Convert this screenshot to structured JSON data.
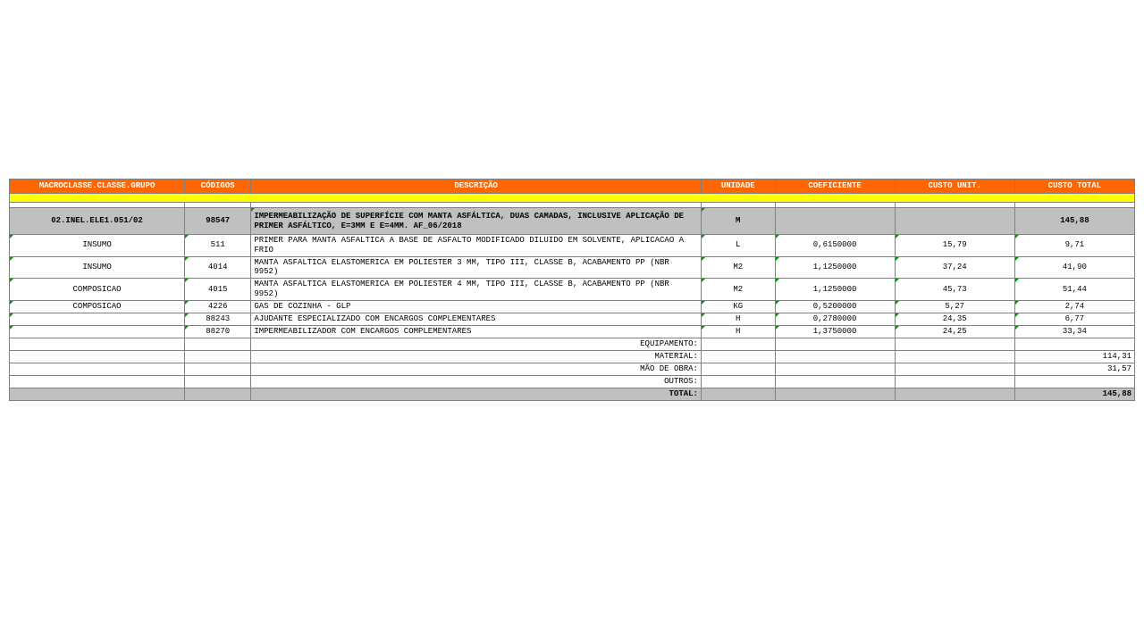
{
  "headers": {
    "macro": "MACROCLASSE.CLASSE.GRUPO",
    "cod": "CÓDIGOS",
    "desc": "DESCRIÇÃO",
    "uni": "UNIDADE",
    "coef": "COEFICIENTE",
    "unit": "CUSTO UNIT.",
    "total": "CUSTO TOTAL"
  },
  "title": {
    "macro": "02.INEL.ELE1.051/02",
    "cod": "98547",
    "desc": "IMPERMEABILIZAÇÃO DE SUPERFÍCIE COM MANTA ASFÁLTICA, DUAS CAMADAS, INCLUSIVE APLICAÇÃO DE PRIMER ASFÁLTICO, E=3MM E E=4MM. AF_06/2018",
    "uni": "M",
    "total": "145,88"
  },
  "rows": [
    {
      "macro": "INSUMO",
      "cod": "511",
      "desc": "PRIMER PARA MANTA ASFALTICA A BASE DE ASFALTO MODIFICADO DILUIDO EM SOLVENTE, APLICACAO A FRIO",
      "uni": "L",
      "coef": "0,6150000",
      "unit": "15,79",
      "total": "9,71"
    },
    {
      "macro": "INSUMO",
      "cod": "4014",
      "desc": "MANTA ASFALTICA ELASTOMERICA EM POLIESTER 3 MM, TIPO III, CLASSE B, ACABAMENTO PP (NBR 9952)",
      "uni": "M2",
      "coef": "1,1250000",
      "unit": "37,24",
      "total": "41,90"
    },
    {
      "macro": "COMPOSICAO",
      "cod": "4015",
      "desc": "MANTA ASFALTICA ELASTOMERICA EM POLIESTER 4 MM, TIPO III, CLASSE B, ACABAMENTO PP (NBR 9952)",
      "uni": "M2",
      "coef": "1,1250000",
      "unit": "45,73",
      "total": "51,44"
    },
    {
      "macro": "COMPOSICAO",
      "cod": "4226",
      "desc": "GAS DE COZINHA - GLP",
      "uni": "KG",
      "coef": "0,5200000",
      "unit": "5,27",
      "total": "2,74"
    },
    {
      "macro": "",
      "cod": "88243",
      "desc": "AJUDANTE ESPECIALIZADO COM ENCARGOS COMPLEMENTARES",
      "uni": "H",
      "coef": "0,2780000",
      "unit": "24,35",
      "total": "6,77"
    },
    {
      "macro": "",
      "cod": "88270",
      "desc": "IMPERMEABILIZADOR COM ENCARGOS COMPLEMENTARES",
      "uni": "H",
      "coef": "1,3750000",
      "unit": "24,25",
      "total": "33,34"
    }
  ],
  "subtotals": [
    {
      "label": "EQUIPAMENTO:",
      "total": ""
    },
    {
      "label": "MATERIAL:",
      "total": "114,31"
    },
    {
      "label": "MÃO DE OBRA:",
      "total": "31,57"
    },
    {
      "label": "OUTROS:",
      "total": ""
    }
  ],
  "grand": {
    "label": "TOTAL:",
    "total": "145,88"
  },
  "colors": {
    "header_bg": "#ff6600",
    "header_fg": "#ffffff",
    "highlight_bg": "#ffff00",
    "title_bg": "#c0c0c0",
    "border": "#808080",
    "tick": "#009900"
  }
}
